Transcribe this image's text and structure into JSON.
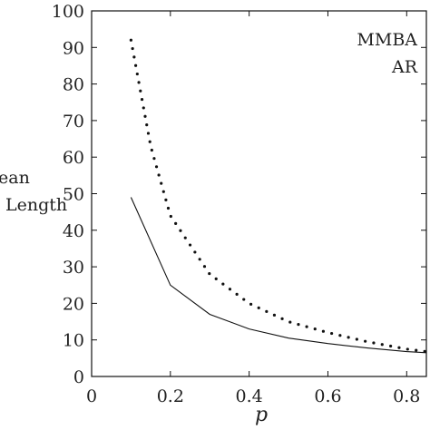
{
  "chart_data": {
    "type": "line",
    "xlabel": "p",
    "ylabel_lines": [
      "ean",
      "Length"
    ],
    "xlim": [
      0,
      0.85
    ],
    "ylim": [
      0,
      100
    ],
    "x_ticks": [
      0,
      0.2,
      0.4,
      0.6,
      0.8
    ],
    "x_tick_labels": [
      "0",
      "0.2",
      "0.4",
      "0.6",
      "0.8"
    ],
    "y_ticks": [
      0,
      10,
      20,
      30,
      40,
      50,
      60,
      70,
      80,
      90,
      100
    ],
    "y_tick_labels": [
      "0",
      "10",
      "20",
      "30",
      "40",
      "50",
      "60",
      "70",
      "80",
      "90",
      "100"
    ],
    "legend_position": "top-right",
    "series": [
      {
        "name": "MMBA",
        "style": "dotted",
        "x": [
          0.1,
          0.15,
          0.2,
          0.3,
          0.4,
          0.5,
          0.6,
          0.7,
          0.8,
          0.85
        ],
        "values": [
          92,
          63,
          44,
          28,
          20,
          15,
          12,
          9.5,
          7.5,
          6.8
        ]
      },
      {
        "name": "AR",
        "style": "solid",
        "x": [
          0.1,
          0.2,
          0.3,
          0.4,
          0.5,
          0.6,
          0.7,
          0.8,
          0.85
        ],
        "values": [
          49,
          25,
          17,
          13,
          10.5,
          9,
          7.8,
          6.8,
          6.5
        ]
      }
    ]
  }
}
